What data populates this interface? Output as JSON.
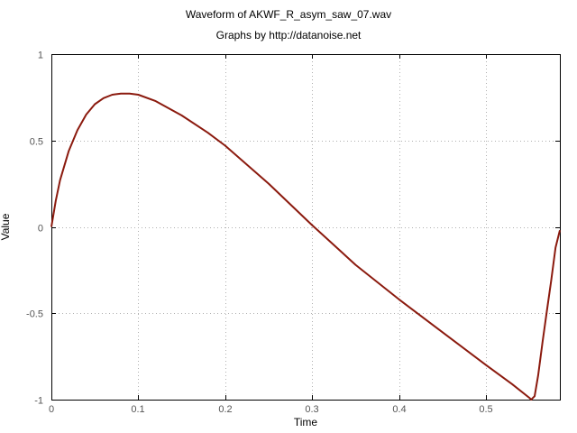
{
  "chart_data": {
    "type": "line",
    "title": "Waveform of AKWF_R_asym_saw_07.wav",
    "subtitle": "Graphs by http://datanoise.net",
    "xlabel": "Time",
    "ylabel": "Value",
    "xlim": [
      0,
      0.585
    ],
    "ylim": [
      -1,
      1
    ],
    "x_ticks": [
      "0",
      "0.1",
      "0.2",
      "0.3",
      "0.4",
      "0.5"
    ],
    "y_ticks": [
      "1",
      "0.5",
      "0",
      "-0.5",
      "-1"
    ],
    "grid": true,
    "legend": "none",
    "series": [
      {
        "color": "#8b1a0e",
        "x": [
          0,
          0.005,
          0.01,
          0.02,
          0.03,
          0.04,
          0.05,
          0.06,
          0.07,
          0.08,
          0.09,
          0.1,
          0.12,
          0.15,
          0.18,
          0.2,
          0.25,
          0.3,
          0.35,
          0.4,
          0.45,
          0.5,
          0.53,
          0.55,
          0.552,
          0.556,
          0.56,
          0.565,
          0.57,
          0.575,
          0.58,
          0.585
        ],
        "y": [
          0,
          0.15,
          0.27,
          0.44,
          0.56,
          0.65,
          0.71,
          0.745,
          0.765,
          0.772,
          0.772,
          0.765,
          0.728,
          0.645,
          0.545,
          0.47,
          0.25,
          0.01,
          -0.22,
          -0.42,
          -0.61,
          -0.8,
          -0.91,
          -0.99,
          -1.0,
          -0.98,
          -0.86,
          -0.67,
          -0.49,
          -0.31,
          -0.12,
          -0.02
        ]
      }
    ]
  }
}
